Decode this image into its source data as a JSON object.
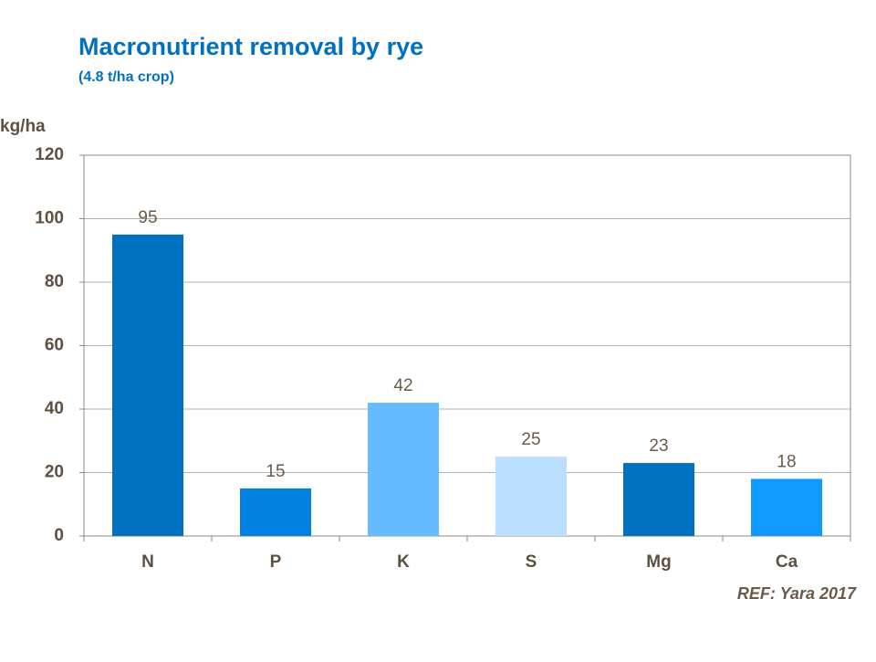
{
  "chart_data": {
    "type": "bar",
    "title": "Macronutrient removal by rye",
    "subtitle": "(4.8 t/ha crop)",
    "y_label": "kg/ha",
    "source": "REF: Yara 2017",
    "categories": [
      "N",
      "P",
      "K",
      "S",
      "Mg",
      "Ca"
    ],
    "values": [
      95,
      15,
      42,
      25,
      23,
      18
    ],
    "colors": [
      "#0070c0",
      "#0080e0",
      "#66bbff",
      "#bbddff",
      "#0070c0",
      "#1199ff"
    ],
    "ylim": [
      0,
      120
    ],
    "yticks": [
      0,
      20,
      40,
      60,
      80,
      100,
      120
    ],
    "grid": true
  }
}
